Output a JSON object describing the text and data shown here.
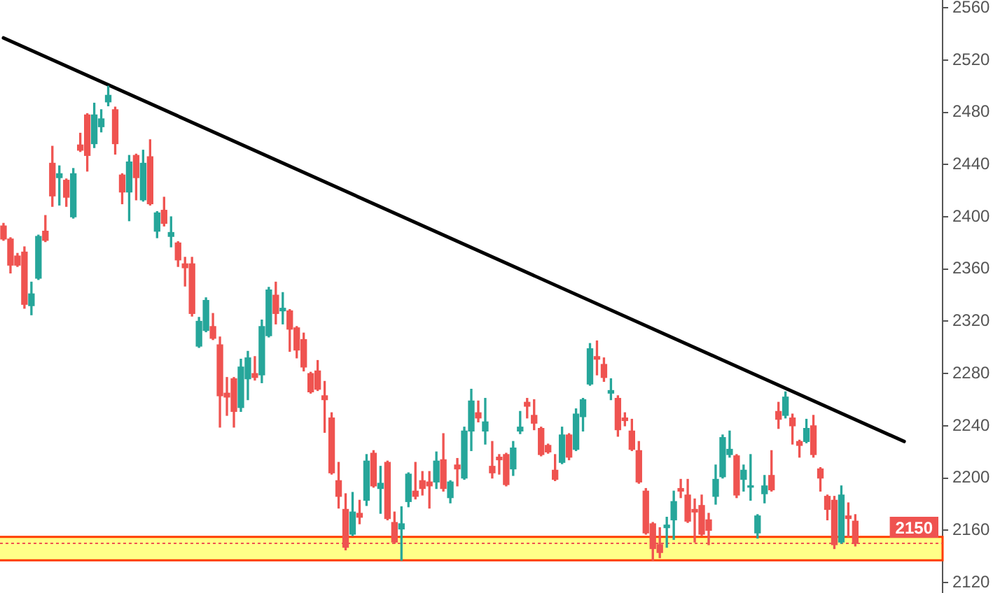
{
  "chart_data": {
    "type": "candlestick",
    "categories": [
      null,
      null,
      null,
      null,
      null,
      null,
      null,
      null,
      null,
      null,
      null,
      null,
      null,
      null,
      null,
      null,
      null,
      null,
      null,
      null,
      null,
      null,
      null,
      null,
      null,
      null,
      null,
      null,
      null,
      null,
      null,
      null,
      null,
      null,
      null,
      null,
      null,
      null,
      null,
      null,
      null,
      null,
      null,
      null,
      null,
      null,
      null,
      null,
      null,
      null,
      null,
      null,
      null,
      null,
      null,
      null,
      null,
      null,
      null,
      null,
      null,
      null,
      null,
      null,
      null,
      null,
      null,
      null,
      null,
      null,
      null,
      null,
      null,
      null,
      null,
      null,
      null,
      null,
      null,
      null,
      null,
      null,
      null,
      null,
      null,
      null,
      null,
      null,
      null,
      null,
      null,
      null,
      null,
      null,
      null,
      null,
      null,
      null,
      null,
      null,
      null,
      null,
      null,
      null,
      null,
      null,
      null,
      null,
      null,
      null,
      null,
      null,
      null,
      null,
      null,
      null,
      null,
      null,
      null,
      null,
      null,
      null,
      null,
      null,
      null,
      null,
      null,
      null,
      null,
      null,
      null,
      null,
      null,
      null,
      null
    ],
    "ohlc": [
      [
        2393,
        2395,
        2382,
        2383
      ],
      [
        2383,
        2384,
        2357,
        2363
      ],
      [
        2370,
        2372,
        2362,
        2363
      ],
      [
        2373,
        2377,
        2330,
        2333
      ],
      [
        2332,
        2350,
        2325,
        2341
      ],
      [
        2353,
        2386,
        2352,
        2385
      ],
      [
        2389,
        2401,
        2381,
        2382
      ],
      [
        2441,
        2454,
        2408,
        2416
      ],
      [
        2430,
        2439,
        2409,
        2433
      ],
      [
        2428,
        2429,
        2408,
        2415
      ],
      [
        2400,
        2437,
        2399,
        2433
      ],
      [
        2455,
        2464,
        2450,
        2451
      ],
      [
        2478,
        2479,
        2435,
        2447
      ],
      [
        2456,
        2487,
        2453,
        2478
      ],
      [
        2469,
        2482,
        2465,
        2475
      ],
      [
        2488,
        2500,
        2485,
        2493
      ],
      [
        2482,
        2484,
        2448,
        2456
      ],
      [
        2432,
        2433,
        2410,
        2419
      ],
      [
        2419,
        2447,
        2397,
        2442
      ],
      [
        2447,
        2448,
        2413,
        2430
      ],
      [
        2413,
        2451,
        2412,
        2441
      ],
      [
        2446,
        2459,
        2409,
        2410
      ],
      [
        2389,
        2404,
        2384,
        2403
      ],
      [
        2405,
        2415,
        2393,
        2395
      ],
      [
        2385,
        2400,
        2377,
        2388
      ],
      [
        2380,
        2381,
        2362,
        2367
      ],
      [
        2364,
        2369,
        2347,
        2361
      ],
      [
        2364,
        2369,
        2324,
        2326
      ],
      [
        2301,
        2323,
        2300,
        2320
      ],
      [
        2313,
        2338,
        2312,
        2336
      ],
      [
        2316,
        2326,
        2306,
        2307
      ],
      [
        2302,
        2308,
        2239,
        2263
      ],
      [
        2265,
        2277,
        2248,
        2262
      ],
      [
        2276,
        2277,
        2239,
        2251
      ],
      [
        2254,
        2291,
        2251,
        2285
      ],
      [
        2276,
        2297,
        2260,
        2292
      ],
      [
        2280,
        2293,
        2275,
        2277
      ],
      [
        2279,
        2321,
        2273,
        2316
      ],
      [
        2309,
        2346,
        2308,
        2344
      ],
      [
        2340,
        2350,
        2318,
        2326
      ],
      [
        2328,
        2342,
        2318,
        2330
      ],
      [
        2328,
        2329,
        2297,
        2314
      ],
      [
        2315,
        2316,
        2292,
        2298
      ],
      [
        2306,
        2311,
        2282,
        2285
      ],
      [
        2280,
        2281,
        2265,
        2266
      ],
      [
        2282,
        2290,
        2267,
        2268
      ],
      [
        2263,
        2274,
        2235,
        2260
      ],
      [
        2246,
        2250,
        2203,
        2204
      ],
      [
        2198,
        2212,
        2177,
        2186
      ],
      [
        2176,
        2188,
        2145,
        2147
      ],
      [
        2157,
        2189,
        2156,
        2174
      ],
      [
        2173,
        2183,
        2165,
        2170
      ],
      [
        2183,
        2218,
        2179,
        2213
      ],
      [
        2219,
        2221,
        2193,
        2194
      ],
      [
        2192,
        2209,
        2173,
        2196
      ],
      [
        2212,
        2213,
        2168,
        2169
      ],
      [
        2166,
        2174,
        2150,
        2151
      ],
      [
        2161,
        2178,
        2137,
        2165
      ],
      [
        2182,
        2204,
        2178,
        2203
      ],
      [
        2190,
        2212,
        2184,
        2186
      ],
      [
        2198,
        2205,
        2187,
        2192
      ],
      [
        2197,
        2205,
        2177,
        2194
      ],
      [
        2197,
        2220,
        2192,
        2213
      ],
      [
        2214,
        2234,
        2190,
        2192
      ],
      [
        2185,
        2198,
        2181,
        2197
      ],
      [
        2210,
        2215,
        2194,
        2207
      ],
      [
        2200,
        2239,
        2199,
        2236
      ],
      [
        2236,
        2268,
        2221,
        2259
      ],
      [
        2250,
        2259,
        2243,
        2246
      ],
      [
        2236,
        2261,
        2226,
        2243
      ],
      [
        2209,
        2228,
        2200,
        2204
      ],
      [
        2216,
        2218,
        2203,
        2214
      ],
      [
        2218,
        2219,
        2194,
        2195
      ],
      [
        2207,
        2228,
        2202,
        2223
      ],
      [
        2236,
        2251,
        2234,
        2239
      ],
      [
        2258,
        2261,
        2246,
        2255
      ],
      [
        2248,
        2260,
        2237,
        2242
      ],
      [
        2238,
        2239,
        2217,
        2218
      ],
      [
        2225,
        2226,
        2219,
        2220
      ],
      [
        2206,
        2218,
        2198,
        2199
      ],
      [
        2212,
        2239,
        2211,
        2233
      ],
      [
        2233,
        2234,
        2214,
        2216
      ],
      [
        2222,
        2253,
        2221,
        2249
      ],
      [
        2247,
        2261,
        2236,
        2260
      ],
      [
        2272,
        2303,
        2271,
        2299
      ],
      [
        2293,
        2305,
        2279,
        2291
      ],
      [
        2287,
        2292,
        2274,
        2277
      ],
      [
        2265,
        2276,
        2260,
        2267
      ],
      [
        2261,
        2263,
        2232,
        2237
      ],
      [
        2246,
        2250,
        2240,
        2244
      ],
      [
        2236,
        2245,
        2221,
        2222
      ],
      [
        2221,
        2228,
        2196,
        2197
      ],
      [
        2190,
        2192,
        2157,
        2158
      ],
      [
        2165,
        2166,
        2137,
        2146
      ],
      [
        2149,
        2162,
        2139,
        2143
      ],
      [
        2162,
        2170,
        2147,
        2164
      ],
      [
        2168,
        2190,
        2153,
        2182
      ],
      [
        2192,
        2199,
        2185,
        2190
      ],
      [
        2187,
        2199,
        2166,
        2167
      ],
      [
        2176,
        2184,
        2151,
        2174
      ],
      [
        2179,
        2187,
        2156,
        2157
      ],
      [
        2168,
        2173,
        2149,
        2160
      ],
      [
        2186,
        2210,
        2180,
        2199
      ],
      [
        2201,
        2233,
        2200,
        2231
      ],
      [
        2218,
        2236,
        2216,
        2222
      ],
      [
        2217,
        2218,
        2185,
        2187
      ],
      [
        2199,
        2210,
        2190,
        2206
      ],
      [
        2193,
        2218,
        2183,
        2194
      ],
      [
        2158,
        2172,
        2154,
        2171
      ],
      [
        2188,
        2202,
        2181,
        2194
      ],
      [
        2202,
        2221,
        2190,
        2191
      ],
      [
        2251,
        2258,
        2238,
        2245
      ],
      [
        2248,
        2266,
        2246,
        2262
      ],
      [
        2246,
        2249,
        2226,
        2240
      ],
      [
        2228,
        2229,
        2216,
        2225
      ],
      [
        2228,
        2245,
        2227,
        2238
      ],
      [
        2240,
        2248,
        2216,
        2218
      ],
      [
        2207,
        2208,
        2190,
        2200
      ],
      [
        2186,
        2187,
        2168,
        2176
      ],
      [
        2183,
        2186,
        2146,
        2149
      ],
      [
        2151,
        2194,
        2150,
        2187
      ],
      [
        2171,
        2181,
        2155,
        2169
      ],
      [
        2167,
        2172,
        2148,
        2150
      ],
      null,
      null,
      null,
      null,
      null,
      null,
      null,
      null,
      null,
      null,
      null,
      null
    ],
    "colors": [
      "#ef5350",
      "#ef5350",
      "#ef5350",
      "#ef5350",
      "#26a69a",
      "#26a69a",
      "#ef5350",
      "#ef5350",
      "#26a69a",
      "#ef5350",
      "#26a69a",
      "#ef5350",
      "#ef5350",
      "#26a69a",
      "#26a69a",
      "#26a69a",
      "#ef5350",
      "#ef5350",
      "#26a69a",
      "#ef5350",
      "#26a69a",
      "#ef5350",
      "#26a69a",
      "#ef5350",
      "#26a69a",
      "#ef5350",
      "#ef5350",
      "#ef5350",
      "#26a69a",
      "#26a69a",
      "#ef5350",
      "#ef5350",
      "#ef5350",
      "#ef5350",
      "#26a69a",
      "#26a69a",
      "#ef5350",
      "#26a69a",
      "#26a69a",
      "#ef5350",
      "#26a69a",
      "#ef5350",
      "#ef5350",
      "#ef5350",
      "#ef5350",
      "#ef5350",
      "#ef5350",
      "#ef5350",
      "#ef5350",
      "#ef5350",
      "#26a69a",
      "#ef5350",
      "#26a69a",
      "#ef5350",
      "#26a69a",
      "#ef5350",
      "#ef5350",
      "#26a69a",
      "#26a69a",
      "#ef5350",
      "#ef5350",
      "#ef5350",
      "#26a69a",
      "#ef5350",
      "#26a69a",
      "#ef5350",
      "#26a69a",
      "#26a69a",
      "#ef5350",
      "#26a69a",
      "#ef5350",
      "#ef5350",
      "#ef5350",
      "#26a69a",
      "#26a69a",
      "#ef5350",
      "#ef5350",
      "#ef5350",
      "#ef5350",
      "#ef5350",
      "#26a69a",
      "#ef5350",
      "#26a69a",
      "#26a69a",
      "#26a69a",
      "#ef5350",
      "#ef5350",
      "#26a69a",
      "#ef5350",
      "#ef5350",
      "#ef5350",
      "#ef5350",
      "#ef5350",
      "#ef5350",
      "#ef5350",
      "#26a69a",
      "#26a69a",
      "#ef5350",
      "#ef5350",
      "#ef5350",
      "#ef5350",
      "#ef5350",
      "#26a69a",
      "#26a69a",
      "#26a69a",
      "#ef5350",
      "#26a69a",
      "#26a69a",
      "#26a69a",
      "#26a69a",
      "#ef5350",
      "#ef5350",
      "#26a69a",
      "#ef5350",
      "#ef5350",
      "#26a69a",
      "#ef5350",
      "#ef5350",
      "#ef5350",
      "#ef5350",
      "#26a69a",
      "#ef5350",
      "#ef5350",
      null,
      null,
      null,
      null,
      null,
      null,
      null,
      null,
      null,
      null,
      null,
      null
    ],
    "series": [
      {
        "type": "line",
        "color": "#000000",
        "values": [
          2537,
          null,
          null,
          null,
          null,
          null,
          null,
          null,
          null,
          null,
          null,
          null,
          null,
          null,
          null,
          null,
          null,
          null,
          null,
          null,
          null,
          null,
          null,
          null,
          null,
          null,
          null,
          null,
          null,
          null,
          null,
          null,
          null,
          null,
          null,
          null,
          null,
          null,
          null,
          null,
          null,
          null,
          null,
          null,
          null,
          null,
          null,
          null,
          null,
          null,
          null,
          null,
          null,
          null,
          null,
          null,
          null,
          null,
          null,
          null,
          null,
          null,
          null,
          null,
          null,
          null,
          null,
          null,
          null,
          null,
          null,
          null,
          null,
          null,
          null,
          null,
          null,
          null,
          null,
          null,
          null,
          null,
          null,
          null,
          null,
          null,
          null,
          null,
          null,
          null,
          null,
          null,
          null,
          null,
          null,
          null,
          null,
          null,
          null,
          null,
          null,
          null,
          null,
          null,
          null,
          null,
          null,
          null,
          null,
          null,
          null,
          null,
          null,
          null,
          null,
          null,
          null,
          null,
          null,
          null,
          null,
          null,
          null,
          null,
          null,
          null,
          null,
          null,
          null,
          2228,
          null,
          null,
          null,
          null,
          null
        ]
      }
    ],
    "ylim": [
      2112,
      2566
    ],
    "yticks": [
      2120,
      2160,
      2200,
      2240,
      2280,
      2320,
      2360,
      2400,
      2440,
      2480,
      2520,
      2560
    ],
    "tick_labels": "y",
    "ref_lines": [
      {
        "axis": "y",
        "value": 2150,
        "label": "2150",
        "color": "#ef5350",
        "line_style": "dotted"
      }
    ],
    "bands": [
      {
        "axis": "y",
        "from": 2137,
        "to": 2155,
        "color": "#ffff88"
      }
    ]
  }
}
